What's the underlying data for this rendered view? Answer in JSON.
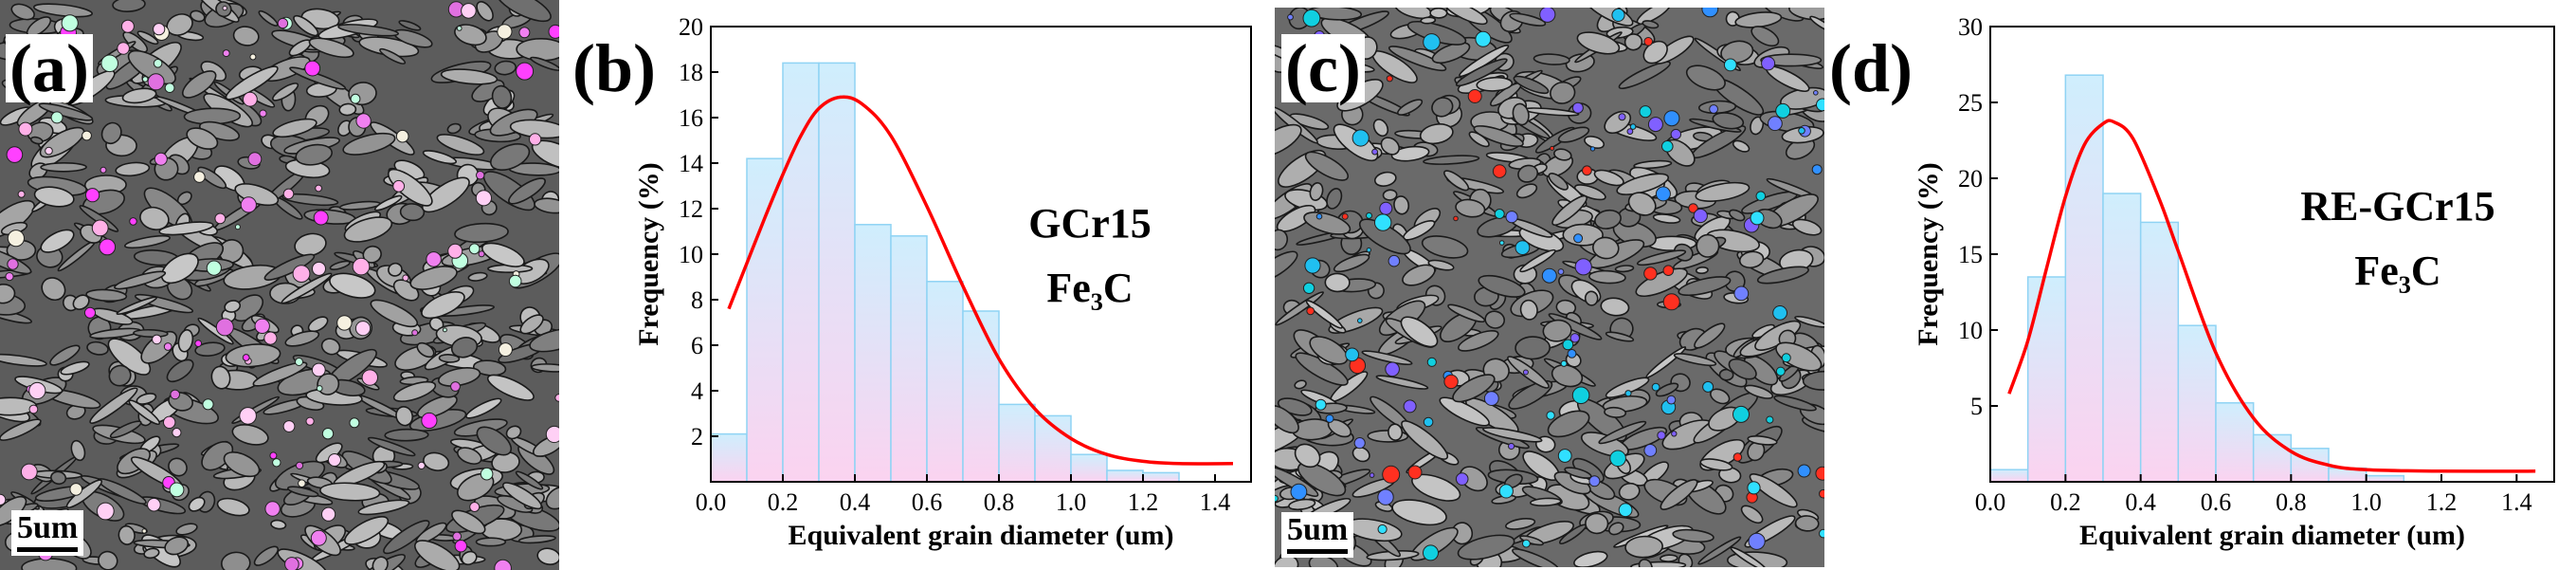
{
  "panels": {
    "a": {
      "label": "(a)",
      "scalebar": "5um"
    },
    "b": {
      "label": "(b)"
    },
    "c": {
      "label": "(c)",
      "scalebar": "5um"
    },
    "d": {
      "label": "(d)"
    }
  },
  "colors": {
    "bar_fill_top": "#cfeefd",
    "bar_fill_bottom": "#fbd3f0",
    "bar_stroke": "#8fd3f4",
    "curve": "#ff0000"
  },
  "chart_data": [
    {
      "id": "b",
      "type": "bar",
      "annotation": [
        "GCr15",
        "Fe₃C"
      ],
      "xlabel": "Equivalent grain diameter (um)",
      "ylabel": "Frequency (%)",
      "xlim": [
        0.0,
        1.5
      ],
      "ylim": [
        0,
        20
      ],
      "xticks": [
        "0.0",
        "0.2",
        "0.4",
        "0.6",
        "0.8",
        "1.0",
        "1.2",
        "1.4"
      ],
      "yticks": [
        "2",
        "4",
        "6",
        "8",
        "10",
        "12",
        "14",
        "16",
        "18",
        "20"
      ],
      "bin_width": 0.1,
      "bins": [
        0.0,
        0.1,
        0.2,
        0.3,
        0.4,
        0.5,
        0.6,
        0.7,
        0.8,
        0.9,
        1.0,
        1.1,
        1.2
      ],
      "values": [
        2.1,
        14.2,
        18.4,
        18.4,
        11.3,
        10.8,
        8.8,
        7.5,
        3.4,
        2.9,
        1.2,
        0.5,
        0.4
      ],
      "fit_curve": {
        "type": "lognormal-fit",
        "peak_x": 0.36,
        "peak_y": 16.9,
        "x": [
          0.05,
          0.1,
          0.15,
          0.2,
          0.25,
          0.3,
          0.36,
          0.42,
          0.5,
          0.6,
          0.7,
          0.8,
          0.9,
          1.0,
          1.1,
          1.2,
          1.3,
          1.45
        ],
        "y": [
          7.6,
          9.6,
          11.6,
          13.5,
          15.2,
          16.4,
          16.9,
          16.6,
          15.2,
          12.1,
          8.6,
          5.4,
          3.2,
          1.9,
          1.2,
          0.9,
          0.8,
          0.8
        ]
      }
    },
    {
      "id": "d",
      "type": "bar",
      "annotation": [
        "RE-GCr15",
        "Fe₃C"
      ],
      "xlabel": "Equivalent grain diameter (um)",
      "ylabel": "Frequency (%)",
      "xlim": [
        0.0,
        1.5
      ],
      "ylim": [
        0,
        30
      ],
      "xticks": [
        "0.0",
        "0.2",
        "0.4",
        "0.6",
        "0.8",
        "1.0",
        "1.2",
        "1.4"
      ],
      "yticks": [
        "5",
        "10",
        "15",
        "20",
        "25",
        "30"
      ],
      "bin_width": 0.1,
      "bins": [
        0.0,
        0.1,
        0.2,
        0.3,
        0.4,
        0.5,
        0.6,
        0.7,
        0.8,
        0.9,
        1.0
      ],
      "values": [
        0.8,
        13.5,
        26.8,
        19.0,
        17.1,
        10.3,
        5.2,
        3.1,
        2.2,
        0.9,
        0.4
      ],
      "fit_curve": {
        "type": "lognormal-fit",
        "peak_x": 0.33,
        "peak_y": 23.7,
        "x": [
          0.05,
          0.1,
          0.15,
          0.2,
          0.25,
          0.3,
          0.33,
          0.38,
          0.45,
          0.5,
          0.6,
          0.7,
          0.8,
          0.9,
          1.0,
          1.2,
          1.45
        ],
        "y": [
          5.8,
          9.3,
          14.1,
          18.8,
          22.2,
          23.6,
          23.7,
          22.6,
          18.6,
          15.2,
          8.5,
          4.2,
          2.0,
          1.1,
          0.8,
          0.7,
          0.7
        ]
      }
    }
  ]
}
